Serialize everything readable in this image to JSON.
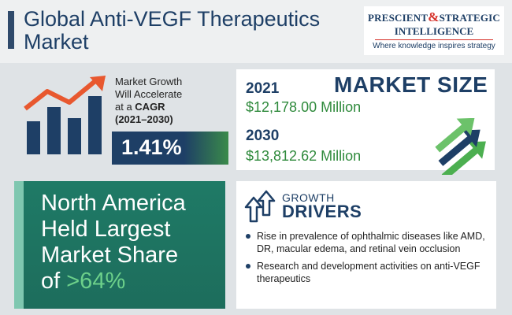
{
  "header": {
    "title": "Global Anti-VEGF Therapeutics Market",
    "brand": {
      "line1_part1": "PRESCIENT",
      "line1_amp": "&",
      "line1_part2": "STRATEGIC",
      "line2": "INTELLIGENCE",
      "tagline": "Where knowledge inspires strategy"
    }
  },
  "growth": {
    "text_line1": "Market Growth",
    "text_line2": "Will Accelerate",
    "text_line3_pre": "at a ",
    "text_line3_bold": "CAGR",
    "text_line4": "(2021–2030)",
    "cagr": "1.41%",
    "icon": "bar-chart-up-arrow-icon"
  },
  "market_size": {
    "title": "MARKET SIZE",
    "year1": "2021",
    "value1": "$12,178.00 Million",
    "year2": "2030",
    "value2": "$13,812.62 Million",
    "icon": "growth-arrows-icon"
  },
  "region": {
    "line1": "North America",
    "line2": "Held Largest",
    "line3": "Market Share",
    "line4_pre": "of ",
    "share": ">64%"
  },
  "drivers": {
    "kicker": "GROWTH",
    "title": "DRIVERS",
    "icon": "up-arrows-icon",
    "items": [
      "Rise in prevalence of ophthalmic diseases like AMD, DR, macular edema, and retinal vein occlusion",
      "Research and development activities on anti-VEGF therapeutics"
    ]
  },
  "colors": {
    "navy": "#1e3f66",
    "green": "#2f8a3c",
    "teal": "#1f7a66",
    "red": "#d6322b"
  }
}
